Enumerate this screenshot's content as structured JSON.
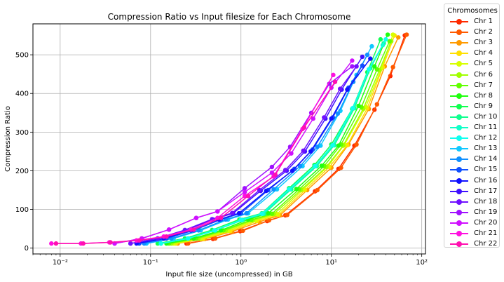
{
  "chart_data": {
    "type": "line",
    "title": "Compression Ratio vs Input filesize for Each Chromosome",
    "xlabel": "Input file size (uncompressed) in GB",
    "ylabel": "Compression Ratio",
    "xscale": "log",
    "xlim": [
      0.005,
      110
    ],
    "ylim": [
      -15,
      580
    ],
    "xticks": [
      0.01,
      0.1,
      1,
      10,
      100
    ],
    "xtick_labels": [
      "10⁻²",
      "10⁻¹",
      "10⁰",
      "10¹",
      "10²"
    ],
    "yticks": [
      0,
      100,
      200,
      300,
      400,
      500
    ],
    "grid": true,
    "legend_title": "Chromosomes",
    "legend_position": "outside-right",
    "series": [
      {
        "name": "Chr 1",
        "color": "#ff2a00",
        "x": [
          0.25,
          0.49,
          0.98,
          1.95,
          3.1,
          6.6,
          12.0,
          18.0,
          30.0,
          45.0,
          65.0
        ],
        "y": [
          12,
          24,
          44,
          70,
          85,
          147,
          205,
          265,
          358,
          445,
          550
        ]
      },
      {
        "name": "Chr 2",
        "color": "#ff5a00",
        "x": [
          0.26,
          0.52,
          1.05,
          2.05,
          3.25,
          7.0,
          12.8,
          19.0,
          32.0,
          48.0,
          68.0
        ],
        "y": [
          12,
          25,
          45,
          72,
          86,
          150,
          208,
          268,
          372,
          468,
          552
        ]
      },
      {
        "name": "Chr 3",
        "color": "#ff9a00",
        "x": [
          0.2,
          0.4,
          0.8,
          1.6,
          2.7,
          5.4,
          10.0,
          15.5,
          26.0,
          39.0,
          55.0
        ],
        "y": [
          12,
          24,
          43,
          68,
          85,
          150,
          208,
          268,
          360,
          470,
          545
        ]
      },
      {
        "name": "Chr 4",
        "color": "#ffe000",
        "x": [
          0.19,
          0.38,
          0.76,
          1.5,
          2.6,
          5.1,
          9.5,
          15.0,
          25.0,
          37.0,
          50.0
        ],
        "y": [
          12,
          24,
          44,
          70,
          86,
          150,
          210,
          266,
          362,
          468,
          550
        ]
      },
      {
        "name": "Chr 5",
        "color": "#d8ff00",
        "x": [
          0.18,
          0.36,
          0.72,
          1.45,
          2.5,
          4.9,
          9.2,
          14.0,
          24.0,
          36.0,
          48.0
        ],
        "y": [
          12,
          24,
          45,
          72,
          88,
          152,
          212,
          268,
          365,
          465,
          552
        ]
      },
      {
        "name": "Chr 6",
        "color": "#a0ff00",
        "x": [
          0.17,
          0.34,
          0.68,
          1.35,
          2.3,
          4.6,
          8.8,
          13.5,
          22.5,
          34.0,
          46.0
        ],
        "y": [
          12,
          25,
          46,
          72,
          88,
          150,
          210,
          265,
          360,
          460,
          535
        ]
      },
      {
        "name": "Chr 7",
        "color": "#60ff00",
        "x": [
          0.16,
          0.32,
          0.64,
          1.3,
          2.2,
          4.4,
          8.3,
          12.8,
          21.5,
          32.0,
          44.0
        ],
        "y": [
          12,
          25,
          46,
          73,
          89,
          152,
          212,
          268,
          365,
          462,
          535
        ]
      },
      {
        "name": "Chr 8",
        "color": "#20ff10",
        "x": [
          0.15,
          0.3,
          0.6,
          1.2,
          2.0,
          4.1,
          7.8,
          12.0,
          20.0,
          30.0,
          42.0
        ],
        "y": [
          12,
          25,
          46,
          74,
          90,
          153,
          213,
          265,
          368,
          470,
          552
        ]
      },
      {
        "name": "Chr 9",
        "color": "#10ff50",
        "x": [
          0.12,
          0.24,
          0.48,
          0.96,
          1.7,
          3.4,
          6.5,
          10.0,
          17.0,
          25.0,
          35.0
        ],
        "y": [
          12,
          25,
          47,
          74,
          90,
          155,
          215,
          268,
          360,
          455,
          540
        ]
      },
      {
        "name": "Chr 10",
        "color": "#10ff90",
        "x": [
          0.13,
          0.26,
          0.52,
          1.05,
          1.8,
          3.6,
          6.9,
          10.8,
          18.0,
          27.0,
          38.0
        ],
        "y": [
          12,
          25,
          46,
          73,
          89,
          152,
          212,
          266,
          362,
          465,
          530
        ]
      },
      {
        "name": "Chr 11",
        "color": "#10ffc8",
        "x": [
          0.13,
          0.26,
          0.52,
          1.03,
          1.75,
          3.5,
          6.7,
          10.5,
          17.5,
          26.0,
          37.0
        ],
        "y": [
          12,
          25,
          46,
          73,
          89,
          152,
          212,
          266,
          362,
          462,
          525
        ]
      },
      {
        "name": "Chr 12",
        "color": "#10fff0",
        "x": [
          0.13,
          0.26,
          0.51,
          1.0,
          1.7,
          3.4,
          6.6,
          10.3,
          17.2,
          26.0,
          40.0
        ],
        "y": [
          12,
          25,
          46,
          73,
          89,
          152,
          212,
          266,
          362,
          462,
          540
        ]
      },
      {
        "name": "Chr 13",
        "color": "#10c8ff",
        "x": [
          0.09,
          0.18,
          0.36,
          0.72,
          1.2,
          2.5,
          4.8,
          7.6,
          12.6,
          19.0,
          28.0
        ],
        "y": [
          12,
          25,
          46,
          74,
          90,
          152,
          212,
          265,
          355,
          448,
          522
        ]
      },
      {
        "name": "Chr 14",
        "color": "#1090ff",
        "x": [
          0.085,
          0.17,
          0.34,
          0.68,
          1.15,
          2.3,
          4.5,
          7.0,
          11.8,
          17.5,
          25.0
        ],
        "y": [
          12,
          25,
          46,
          74,
          90,
          152,
          212,
          262,
          348,
          430,
          500
        ]
      },
      {
        "name": "Chr 15",
        "color": "#1050ff",
        "x": [
          0.075,
          0.15,
          0.3,
          0.6,
          1.0,
          2.0,
          3.9,
          6.2,
          10.4,
          15.5,
          22.0
        ],
        "y": [
          12,
          25,
          46,
          74,
          90,
          150,
          205,
          255,
          338,
          415,
          472
        ]
      },
      {
        "name": "Chr 16",
        "color": "#1010ff",
        "x": [
          0.07,
          0.14,
          0.28,
          0.57,
          0.95,
          1.9,
          3.7,
          5.9,
          10.0,
          15.0,
          27.0
        ],
        "y": [
          12,
          25,
          46,
          74,
          90,
          148,
          200,
          250,
          335,
          410,
          490
        ]
      },
      {
        "name": "Chr 17",
        "color": "#4010ff",
        "x": [
          0.06,
          0.12,
          0.24,
          0.49,
          0.82,
          1.65,
          3.2,
          5.1,
          8.6,
          13.0,
          22.0
        ],
        "y": [
          12,
          25,
          46,
          74,
          90,
          148,
          200,
          250,
          335,
          410,
          495
        ]
      },
      {
        "name": "Chr 18",
        "color": "#7010ff",
        "x": [
          0.06,
          0.12,
          0.24,
          0.48,
          0.8,
          1.6,
          3.1,
          4.9,
          8.3,
          12.5,
          19.0
        ],
        "y": [
          12,
          25,
          47,
          75,
          91,
          150,
          202,
          252,
          338,
          412,
          470
        ]
      },
      {
        "name": "Chr 19",
        "color": "#a010ff",
        "x": [
          0.04,
          0.08,
          0.16,
          0.32,
          0.55,
          1.1,
          2.2,
          3.5,
          6.0,
          9.5,
          17.0
        ],
        "y": [
          12,
          25,
          48,
          78,
          95,
          155,
          210,
          262,
          350,
          425,
          470
        ]
      },
      {
        "name": "Chr 20",
        "color": "#d010ff",
        "x": [
          0.04,
          0.08,
          0.16,
          0.32,
          0.55,
          1.1,
          2.2,
          3.6,
          6.3,
          10.0,
          17.0
        ],
        "y": [
          12,
          25,
          48,
          78,
          95,
          145,
          195,
          245,
          335,
          415,
          485
        ]
      },
      {
        "name": "Chr 21",
        "color": "#ff10e0",
        "x": [
          0.008,
          0.017,
          0.035,
          0.07,
          0.14,
          0.28,
          0.55,
          1.1,
          2.3,
          4.8,
          10.5
        ],
        "y": [
          12,
          12,
          15,
          20,
          30,
          48,
          78,
          135,
          185,
          308,
          448
        ]
      },
      {
        "name": "Chr 22",
        "color": "#ff10b0",
        "x": [
          0.009,
          0.018,
          0.036,
          0.075,
          0.15,
          0.3,
          0.6,
          1.2,
          2.4,
          5.0,
          11.0
        ],
        "y": [
          12,
          12,
          15,
          20,
          30,
          48,
          78,
          135,
          190,
          312,
          430
        ]
      }
    ]
  }
}
